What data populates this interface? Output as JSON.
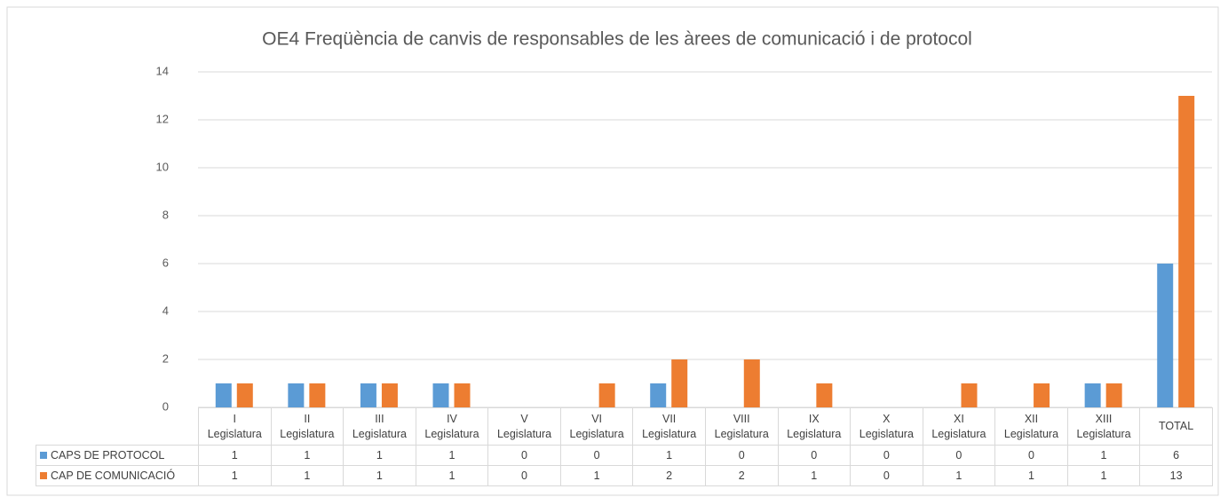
{
  "chart_data": {
    "type": "bar",
    "title": "OE4 Freqüència de canvis de responsables de les àrees de comunicació i de protocol",
    "categories": [
      "I\nLegislatura",
      "II\nLegislatura",
      "III\nLegislatura",
      "IV\nLegislatura",
      "V\nLegislatura",
      "VI\nLegislatura",
      "VII\nLegislatura",
      "VIII\nLegislatura",
      "IX\nLegislatura",
      "X\nLegislatura",
      "XI\nLegislatura",
      "XII\nLegislatura",
      "XIII\nLegislatura",
      "TOTAL"
    ],
    "series": [
      {
        "name": "CAPS DE PROTOCOL",
        "color": "#5b9bd5",
        "values": [
          1,
          1,
          1,
          1,
          0,
          0,
          1,
          0,
          0,
          0,
          0,
          0,
          1,
          6
        ]
      },
      {
        "name": "CAP DE COMUNICACIÓ",
        "color": "#ed7d31",
        "values": [
          1,
          1,
          1,
          1,
          0,
          1,
          2,
          2,
          1,
          0,
          1,
          1,
          1,
          13
        ]
      }
    ],
    "ylim": [
      0,
      14
    ],
    "yticks": [
      0,
      2,
      4,
      6,
      8,
      10,
      12,
      14
    ],
    "grid": true
  }
}
